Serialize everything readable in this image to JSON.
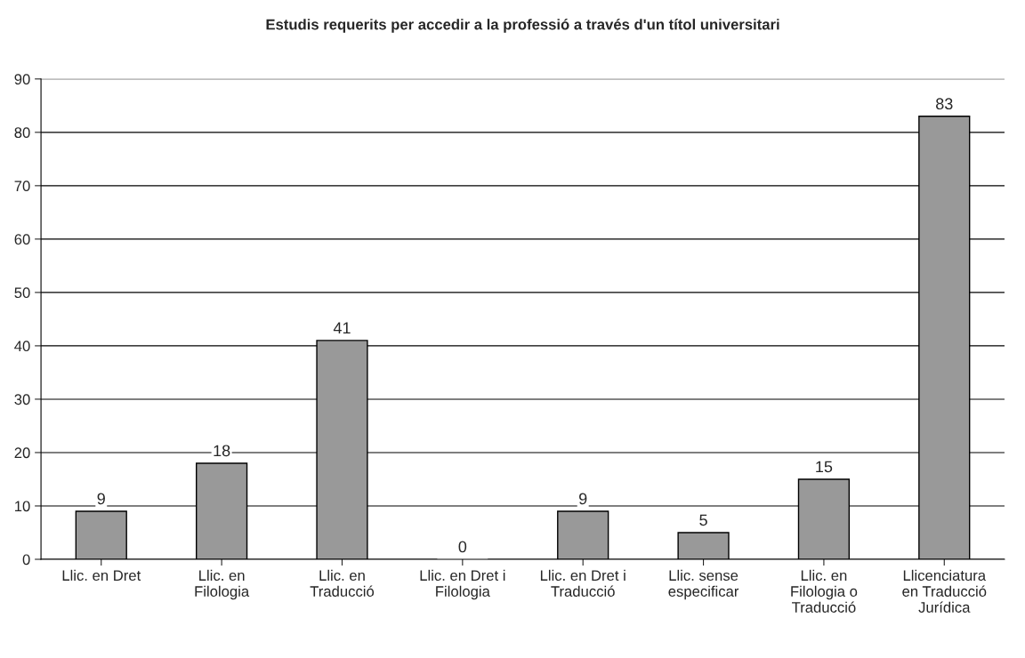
{
  "chart_data": {
    "type": "bar",
    "title": "Estudis requerits per accedir a la professió a través d'un títol universitari",
    "categories": [
      "Llic. en Dret",
      "Llic. en\nFilologia",
      "Llic. en\nTraducció",
      "Llic. en Dret i\nFilologia",
      "Llic. en Dret i\nTraducció",
      "Llic. sense\nespecificar",
      "Llic. en\nFilologia o\nTraducció",
      "Llicenciatura\nen Traducció\nJurídica"
    ],
    "values": [
      9,
      18,
      41,
      0,
      9,
      5,
      15,
      83
    ],
    "color": "#999999",
    "ylim": [
      0,
      90
    ],
    "yticks": [
      0,
      10,
      20,
      30,
      40,
      50,
      60,
      70,
      80,
      90
    ],
    "grid": "y",
    "data_labels": true
  }
}
